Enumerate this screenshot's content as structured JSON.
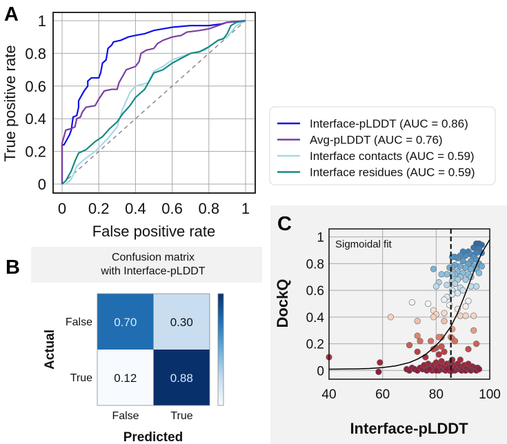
{
  "panels": {
    "a": "A",
    "b": "B",
    "c": "C"
  },
  "chart_data": [
    {
      "type": "line",
      "panel": "A",
      "xlabel": "False positive rate",
      "ylabel": "True positive rate",
      "xlim": [
        0,
        1
      ],
      "ylim": [
        0,
        1
      ],
      "xticks": [
        "0",
        "0.2",
        "0.4",
        "0.6",
        "0.8",
        "1"
      ],
      "yticks": [
        "0",
        "0.2",
        "0.4",
        "0.6",
        "0.8",
        "1"
      ],
      "grid": true,
      "legend_position": "right",
      "diagonal": {
        "style": "dashed",
        "color": "#888888"
      },
      "series": [
        {
          "name": "Interface-pLDDT (AUC = 0.86)",
          "color": "#1010e8",
          "points": [
            [
              0,
              0
            ],
            [
              0,
              0.24
            ],
            [
              0.01,
              0.24
            ],
            [
              0.02,
              0.26
            ],
            [
              0.03,
              0.28
            ],
            [
              0.04,
              0.3
            ],
            [
              0.05,
              0.33
            ],
            [
              0.06,
              0.41
            ],
            [
              0.08,
              0.42
            ],
            [
              0.09,
              0.47
            ],
            [
              0.09,
              0.51
            ],
            [
              0.11,
              0.55
            ],
            [
              0.12,
              0.57
            ],
            [
              0.14,
              0.6
            ],
            [
              0.14,
              0.63
            ],
            [
              0.16,
              0.65
            ],
            [
              0.2,
              0.65
            ],
            [
              0.21,
              0.68
            ],
            [
              0.22,
              0.74
            ],
            [
              0.24,
              0.76
            ],
            [
              0.25,
              0.83
            ],
            [
              0.27,
              0.85
            ],
            [
              0.28,
              0.87
            ],
            [
              0.32,
              0.88
            ],
            [
              0.36,
              0.9
            ],
            [
              0.4,
              0.91
            ],
            [
              0.45,
              0.92
            ],
            [
              0.5,
              0.94
            ],
            [
              0.55,
              0.95
            ],
            [
              0.6,
              0.96
            ],
            [
              0.7,
              0.97
            ],
            [
              0.8,
              0.97
            ],
            [
              0.87,
              0.98
            ],
            [
              0.9,
              0.99
            ],
            [
              1,
              1
            ]
          ]
        },
        {
          "name": "Avg-pLDDT (AUC = 0.76)",
          "color": "#7a3fa0",
          "points": [
            [
              0,
              0
            ],
            [
              0,
              0.25
            ],
            [
              0.01,
              0.29
            ],
            [
              0.02,
              0.33
            ],
            [
              0.05,
              0.34
            ],
            [
              0.07,
              0.35
            ],
            [
              0.08,
              0.4
            ],
            [
              0.1,
              0.41
            ],
            [
              0.11,
              0.44
            ],
            [
              0.13,
              0.47
            ],
            [
              0.18,
              0.48
            ],
            [
              0.2,
              0.52
            ],
            [
              0.23,
              0.57
            ],
            [
              0.27,
              0.58
            ],
            [
              0.3,
              0.58
            ],
            [
              0.31,
              0.62
            ],
            [
              0.33,
              0.66
            ],
            [
              0.35,
              0.7
            ],
            [
              0.4,
              0.72
            ],
            [
              0.42,
              0.75
            ],
            [
              0.43,
              0.8
            ],
            [
              0.46,
              0.82
            ],
            [
              0.5,
              0.83
            ],
            [
              0.52,
              0.86
            ],
            [
              0.55,
              0.88
            ],
            [
              0.6,
              0.9
            ],
            [
              0.65,
              0.91
            ],
            [
              0.68,
              0.93
            ],
            [
              0.75,
              0.94
            ],
            [
              0.8,
              0.95
            ],
            [
              0.85,
              0.97
            ],
            [
              0.9,
              0.99
            ],
            [
              1,
              1
            ]
          ]
        },
        {
          "name": "Interface contacts (AUC = 0.59)",
          "color": "#a8d8e6",
          "points": [
            [
              0.02,
              0
            ],
            [
              0.05,
              0.03
            ],
            [
              0.08,
              0.11
            ],
            [
              0.12,
              0.15
            ],
            [
              0.18,
              0.2
            ],
            [
              0.25,
              0.28
            ],
            [
              0.3,
              0.35
            ],
            [
              0.33,
              0.46
            ],
            [
              0.37,
              0.56
            ],
            [
              0.4,
              0.6
            ],
            [
              0.47,
              0.62
            ],
            [
              0.5,
              0.69
            ],
            [
              0.55,
              0.72
            ],
            [
              0.6,
              0.76
            ],
            [
              0.65,
              0.78
            ],
            [
              0.7,
              0.8
            ],
            [
              0.78,
              0.82
            ],
            [
              0.8,
              0.84
            ],
            [
              0.85,
              0.88
            ],
            [
              0.9,
              0.9
            ],
            [
              0.95,
              0.97
            ],
            [
              1,
              1
            ]
          ]
        },
        {
          "name": "Interface residues (AUC = 0.59)",
          "color": "#138a84",
          "points": [
            [
              0,
              0
            ],
            [
              0.02,
              0.02
            ],
            [
              0.05,
              0.08
            ],
            [
              0.07,
              0.14
            ],
            [
              0.09,
              0.19
            ],
            [
              0.13,
              0.21
            ],
            [
              0.18,
              0.26
            ],
            [
              0.22,
              0.29
            ],
            [
              0.26,
              0.34
            ],
            [
              0.3,
              0.38
            ],
            [
              0.33,
              0.43
            ],
            [
              0.37,
              0.48
            ],
            [
              0.4,
              0.53
            ],
            [
              0.45,
              0.58
            ],
            [
              0.48,
              0.64
            ],
            [
              0.5,
              0.68
            ],
            [
              0.55,
              0.7
            ],
            [
              0.6,
              0.74
            ],
            [
              0.65,
              0.77
            ],
            [
              0.7,
              0.8
            ],
            [
              0.75,
              0.81
            ],
            [
              0.8,
              0.84
            ],
            [
              0.85,
              0.88
            ],
            [
              0.88,
              0.89
            ],
            [
              0.9,
              0.92
            ],
            [
              0.92,
              0.97
            ],
            [
              0.95,
              0.99
            ],
            [
              1,
              1
            ]
          ]
        }
      ]
    },
    {
      "type": "heatmap",
      "panel": "B",
      "title": [
        "Confusion matrix",
        "with Interface-pLDDT"
      ],
      "xlabel": "Predicted",
      "ylabel": "Actual",
      "xticks": [
        "False",
        "True"
      ],
      "yticks": [
        "False",
        "True"
      ],
      "values": [
        [
          0.7,
          0.3
        ],
        [
          0.12,
          0.88
        ]
      ],
      "labels": [
        [
          "0.70",
          "0.30"
        ],
        [
          "0.12",
          "0.88"
        ]
      ],
      "colormap": "Blues",
      "colorbar": true
    },
    {
      "type": "scatter",
      "panel": "C",
      "xlabel": "Interface-pLDDT",
      "ylabel": "DockQ",
      "xlim": [
        40,
        100
      ],
      "ylim": [
        -0.065,
        1.06
      ],
      "xticks": [
        "40",
        "60",
        "80",
        "100"
      ],
      "yticks": [
        "0",
        "0.2",
        "0.4",
        "0.6",
        "0.8",
        "1"
      ],
      "grid": true,
      "annotation": "Sigmoidal fit",
      "threshold_x": 85.5,
      "colormap": "RdBu (by DockQ)",
      "fit_curve": [
        [
          40,
          0.01
        ],
        [
          50,
          0.012
        ],
        [
          55,
          0.015
        ],
        [
          60,
          0.022
        ],
        [
          65,
          0.035
        ],
        [
          70,
          0.06
        ],
        [
          73,
          0.085
        ],
        [
          76,
          0.12
        ],
        [
          79,
          0.17
        ],
        [
          82,
          0.23
        ],
        [
          85.5,
          0.33
        ],
        [
          88,
          0.43
        ],
        [
          91,
          0.58
        ],
        [
          94,
          0.74
        ],
        [
          97,
          0.88
        ],
        [
          100,
          0.98
        ]
      ],
      "points": [
        [
          92,
          0.89
        ],
        [
          93,
          0.87
        ],
        [
          94,
          0.92
        ],
        [
          95,
          0.95
        ],
        [
          96,
          0.95
        ],
        [
          97,
          0.94
        ],
        [
          96,
          0.91
        ],
        [
          95,
          0.88
        ],
        [
          97,
          0.88
        ],
        [
          94,
          0.85
        ],
        [
          93,
          0.82
        ],
        [
          91,
          0.86
        ],
        [
          90,
          0.89
        ],
        [
          89,
          0.86
        ],
        [
          88,
          0.84
        ],
        [
          87,
          0.85
        ],
        [
          86,
          0.85
        ],
        [
          90,
          0.82
        ],
        [
          92,
          0.8
        ],
        [
          95,
          0.83
        ],
        [
          96,
          0.8
        ],
        [
          97,
          0.78
        ],
        [
          94,
          0.78
        ],
        [
          91,
          0.77
        ],
        [
          89,
          0.78
        ],
        [
          87,
          0.79
        ],
        [
          86,
          0.77
        ],
        [
          85,
          0.77
        ],
        [
          88,
          0.74
        ],
        [
          90,
          0.73
        ],
        [
          92,
          0.72
        ],
        [
          93,
          0.76
        ],
        [
          95,
          0.76
        ],
        [
          96,
          0.73
        ],
        [
          89,
          0.7
        ],
        [
          87,
          0.72
        ],
        [
          86,
          0.72
        ],
        [
          84,
          0.72
        ],
        [
          82,
          0.72
        ],
        [
          79,
          0.76
        ],
        [
          81,
          0.66
        ],
        [
          80,
          0.63
        ],
        [
          84,
          0.64
        ],
        [
          86,
          0.67
        ],
        [
          88,
          0.68
        ],
        [
          91,
          0.68
        ],
        [
          93,
          0.7
        ],
        [
          87,
          0.65
        ],
        [
          89,
          0.62
        ],
        [
          86,
          0.6
        ],
        [
          88,
          0.58
        ],
        [
          90,
          0.6
        ],
        [
          93,
          0.63
        ],
        [
          95,
          0.63
        ],
        [
          86,
          0.57
        ],
        [
          84,
          0.55
        ],
        [
          83,
          0.53
        ],
        [
          92,
          0.52
        ],
        [
          91,
          0.48
        ],
        [
          88,
          0.46
        ],
        [
          85,
          0.49
        ],
        [
          71,
          0.51
        ],
        [
          77,
          0.5
        ],
        [
          79,
          0.45
        ],
        [
          80,
          0.42
        ],
        [
          79,
          0.4
        ],
        [
          83,
          0.43
        ],
        [
          83,
          0.37
        ],
        [
          89,
          0.41
        ],
        [
          91,
          0.41
        ],
        [
          94,
          0.41
        ],
        [
          73,
          0.37
        ],
        [
          63,
          0.4
        ],
        [
          86,
          0.31
        ],
        [
          94,
          0.3
        ],
        [
          82,
          0.25
        ],
        [
          81,
          0.25
        ],
        [
          85.5,
          0.25
        ],
        [
          86,
          0.24
        ],
        [
          87,
          0.22
        ],
        [
          73,
          0.26
        ],
        [
          74,
          0.22
        ],
        [
          78,
          0.22
        ],
        [
          82,
          0.18
        ],
        [
          80,
          0.17
        ],
        [
          70,
          0.19
        ],
        [
          95,
          0.2
        ],
        [
          92,
          0.16
        ],
        [
          73,
          0.14
        ],
        [
          76,
          0.1
        ],
        [
          79,
          0.16
        ],
        [
          83,
          0.14
        ],
        [
          81,
          0.12
        ],
        [
          89,
          0.08
        ],
        [
          86,
          0.08
        ],
        [
          40,
          0.1
        ],
        [
          59,
          0.06
        ],
        [
          58.5,
          -0.01
        ],
        [
          69,
          0.01
        ],
        [
          70,
          0.0
        ],
        [
          71,
          0.02
        ],
        [
          72,
          0.01
        ],
        [
          73,
          0.0
        ],
        [
          74,
          0.02
        ],
        [
          75,
          0.01
        ],
        [
          76,
          0.03
        ],
        [
          76.5,
          0.0
        ],
        [
          77,
          0.05
        ],
        [
          78,
          0.02
        ],
        [
          78.5,
          0.0
        ],
        [
          79,
          0.04
        ],
        [
          79.5,
          0.01
        ],
        [
          80,
          0.06
        ],
        [
          80.5,
          0.02
        ],
        [
          81,
          0.0
        ],
        [
          81.5,
          0.04
        ],
        [
          82,
          0.07
        ],
        [
          82.5,
          0.01
        ],
        [
          83,
          0.03
        ],
        [
          83.5,
          0.0
        ],
        [
          84,
          0.05
        ],
        [
          84.5,
          0.02
        ],
        [
          85,
          0.0
        ],
        [
          85.5,
          0.06
        ],
        [
          86,
          0.02
        ],
        [
          86.5,
          0.04
        ],
        [
          87,
          0.0
        ],
        [
          87.5,
          0.03
        ],
        [
          88,
          0.05
        ],
        [
          88.5,
          0.01
        ],
        [
          89,
          0.03
        ],
        [
          89.5,
          0.0
        ],
        [
          90,
          0.02
        ],
        [
          90.5,
          0.04
        ],
        [
          91,
          0.0
        ],
        [
          91.5,
          0.02
        ],
        [
          92,
          0.05
        ],
        [
          92.5,
          0.01
        ],
        [
          93,
          0.0
        ],
        [
          93.5,
          0.03
        ],
        [
          94,
          0.01
        ],
        [
          94.5,
          0.02
        ],
        [
          95,
          0.0
        ],
        [
          95.5,
          0.02
        ],
        [
          96,
          0.01
        ],
        [
          75.5,
          0.04
        ],
        [
          77.5,
          0.01
        ],
        [
          80,
          0.0
        ],
        [
          84,
          0.01
        ],
        [
          86,
          0.0
        ]
      ]
    }
  ]
}
